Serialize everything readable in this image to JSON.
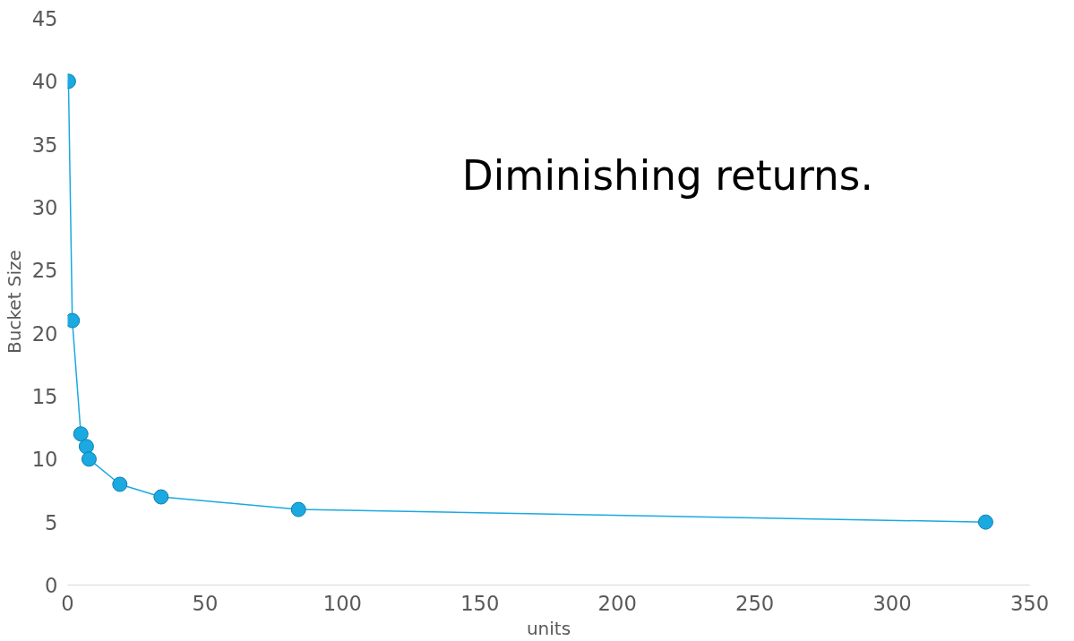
{
  "chart_data": {
    "type": "line",
    "xlabel": "units",
    "ylabel": "Bucket Size",
    "annotations": [
      "Diminishing returns."
    ],
    "series": [
      {
        "color": "#1aa9e0",
        "x": [
          0.3,
          1.7,
          4.8,
          6.8,
          7.8,
          19,
          34,
          84,
          334
        ],
        "values": [
          40,
          21,
          12,
          11,
          10,
          8,
          7,
          6,
          5
        ]
      }
    ],
    "marker": "circle",
    "grid": false,
    "xlim": [
      0,
      350
    ],
    "xticks": [
      0,
      50,
      100,
      150,
      200,
      250,
      300,
      350
    ],
    "ylim": [
      0,
      45
    ],
    "yticks": [
      0,
      5,
      10,
      15,
      20,
      25,
      30,
      35,
      40,
      45
    ]
  }
}
